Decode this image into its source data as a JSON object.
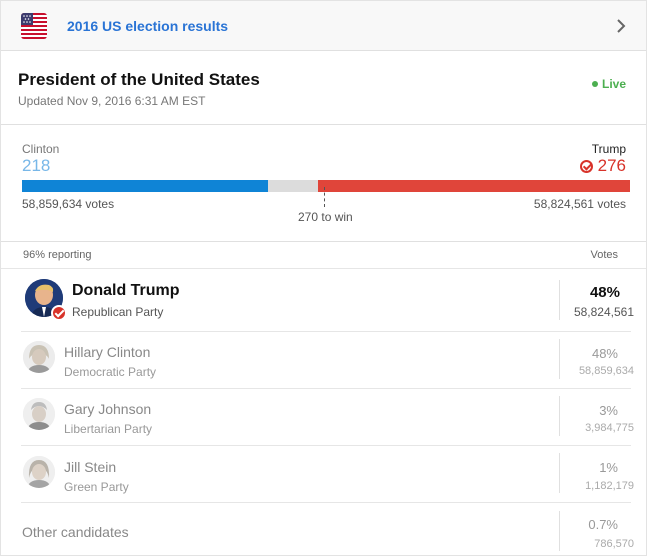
{
  "topbar": {
    "title": "2016 US election results",
    "flag_icon": "us-flag-icon",
    "chevron_icon": "chevron-right-icon"
  },
  "race": {
    "title": "President of the United States",
    "updated": "Updated Nov 9, 2016 6:31 AM EST",
    "status": "Live"
  },
  "electoral": {
    "left": {
      "name": "Clinton",
      "ev": "218",
      "votes": "58,859,634 votes",
      "ev_value": 218,
      "color": "#0f84d6"
    },
    "right": {
      "name": "Trump",
      "ev": "276",
      "votes": "58,824,561 votes",
      "ev_value": 276,
      "color": "#e0453a"
    },
    "total_ev": 538,
    "win_label": "270 to win"
  },
  "table": {
    "reporting": "96% reporting",
    "votes_header": "Votes",
    "candidates": [
      {
        "name": "Donald Trump",
        "party": "Republican Party",
        "pct": "48%",
        "votes": "58,824,561",
        "winner": true
      },
      {
        "name": "Hillary Clinton",
        "party": "Democratic Party",
        "pct": "48%",
        "votes": "58,859,634",
        "winner": false
      },
      {
        "name": "Gary Johnson",
        "party": "Libertarian Party",
        "pct": "3%",
        "votes": "3,984,775",
        "winner": false
      },
      {
        "name": "Jill Stein",
        "party": "Green Party",
        "pct": "1%",
        "votes": "1,182,179",
        "winner": false
      }
    ],
    "other": {
      "name": "Other candidates",
      "pct": "0.7%",
      "votes": "786,570"
    }
  },
  "colors": {
    "accent": "#2a74d5",
    "live": "#4caf50",
    "republican": "#d8332a",
    "democrat": "#0f84d6"
  }
}
